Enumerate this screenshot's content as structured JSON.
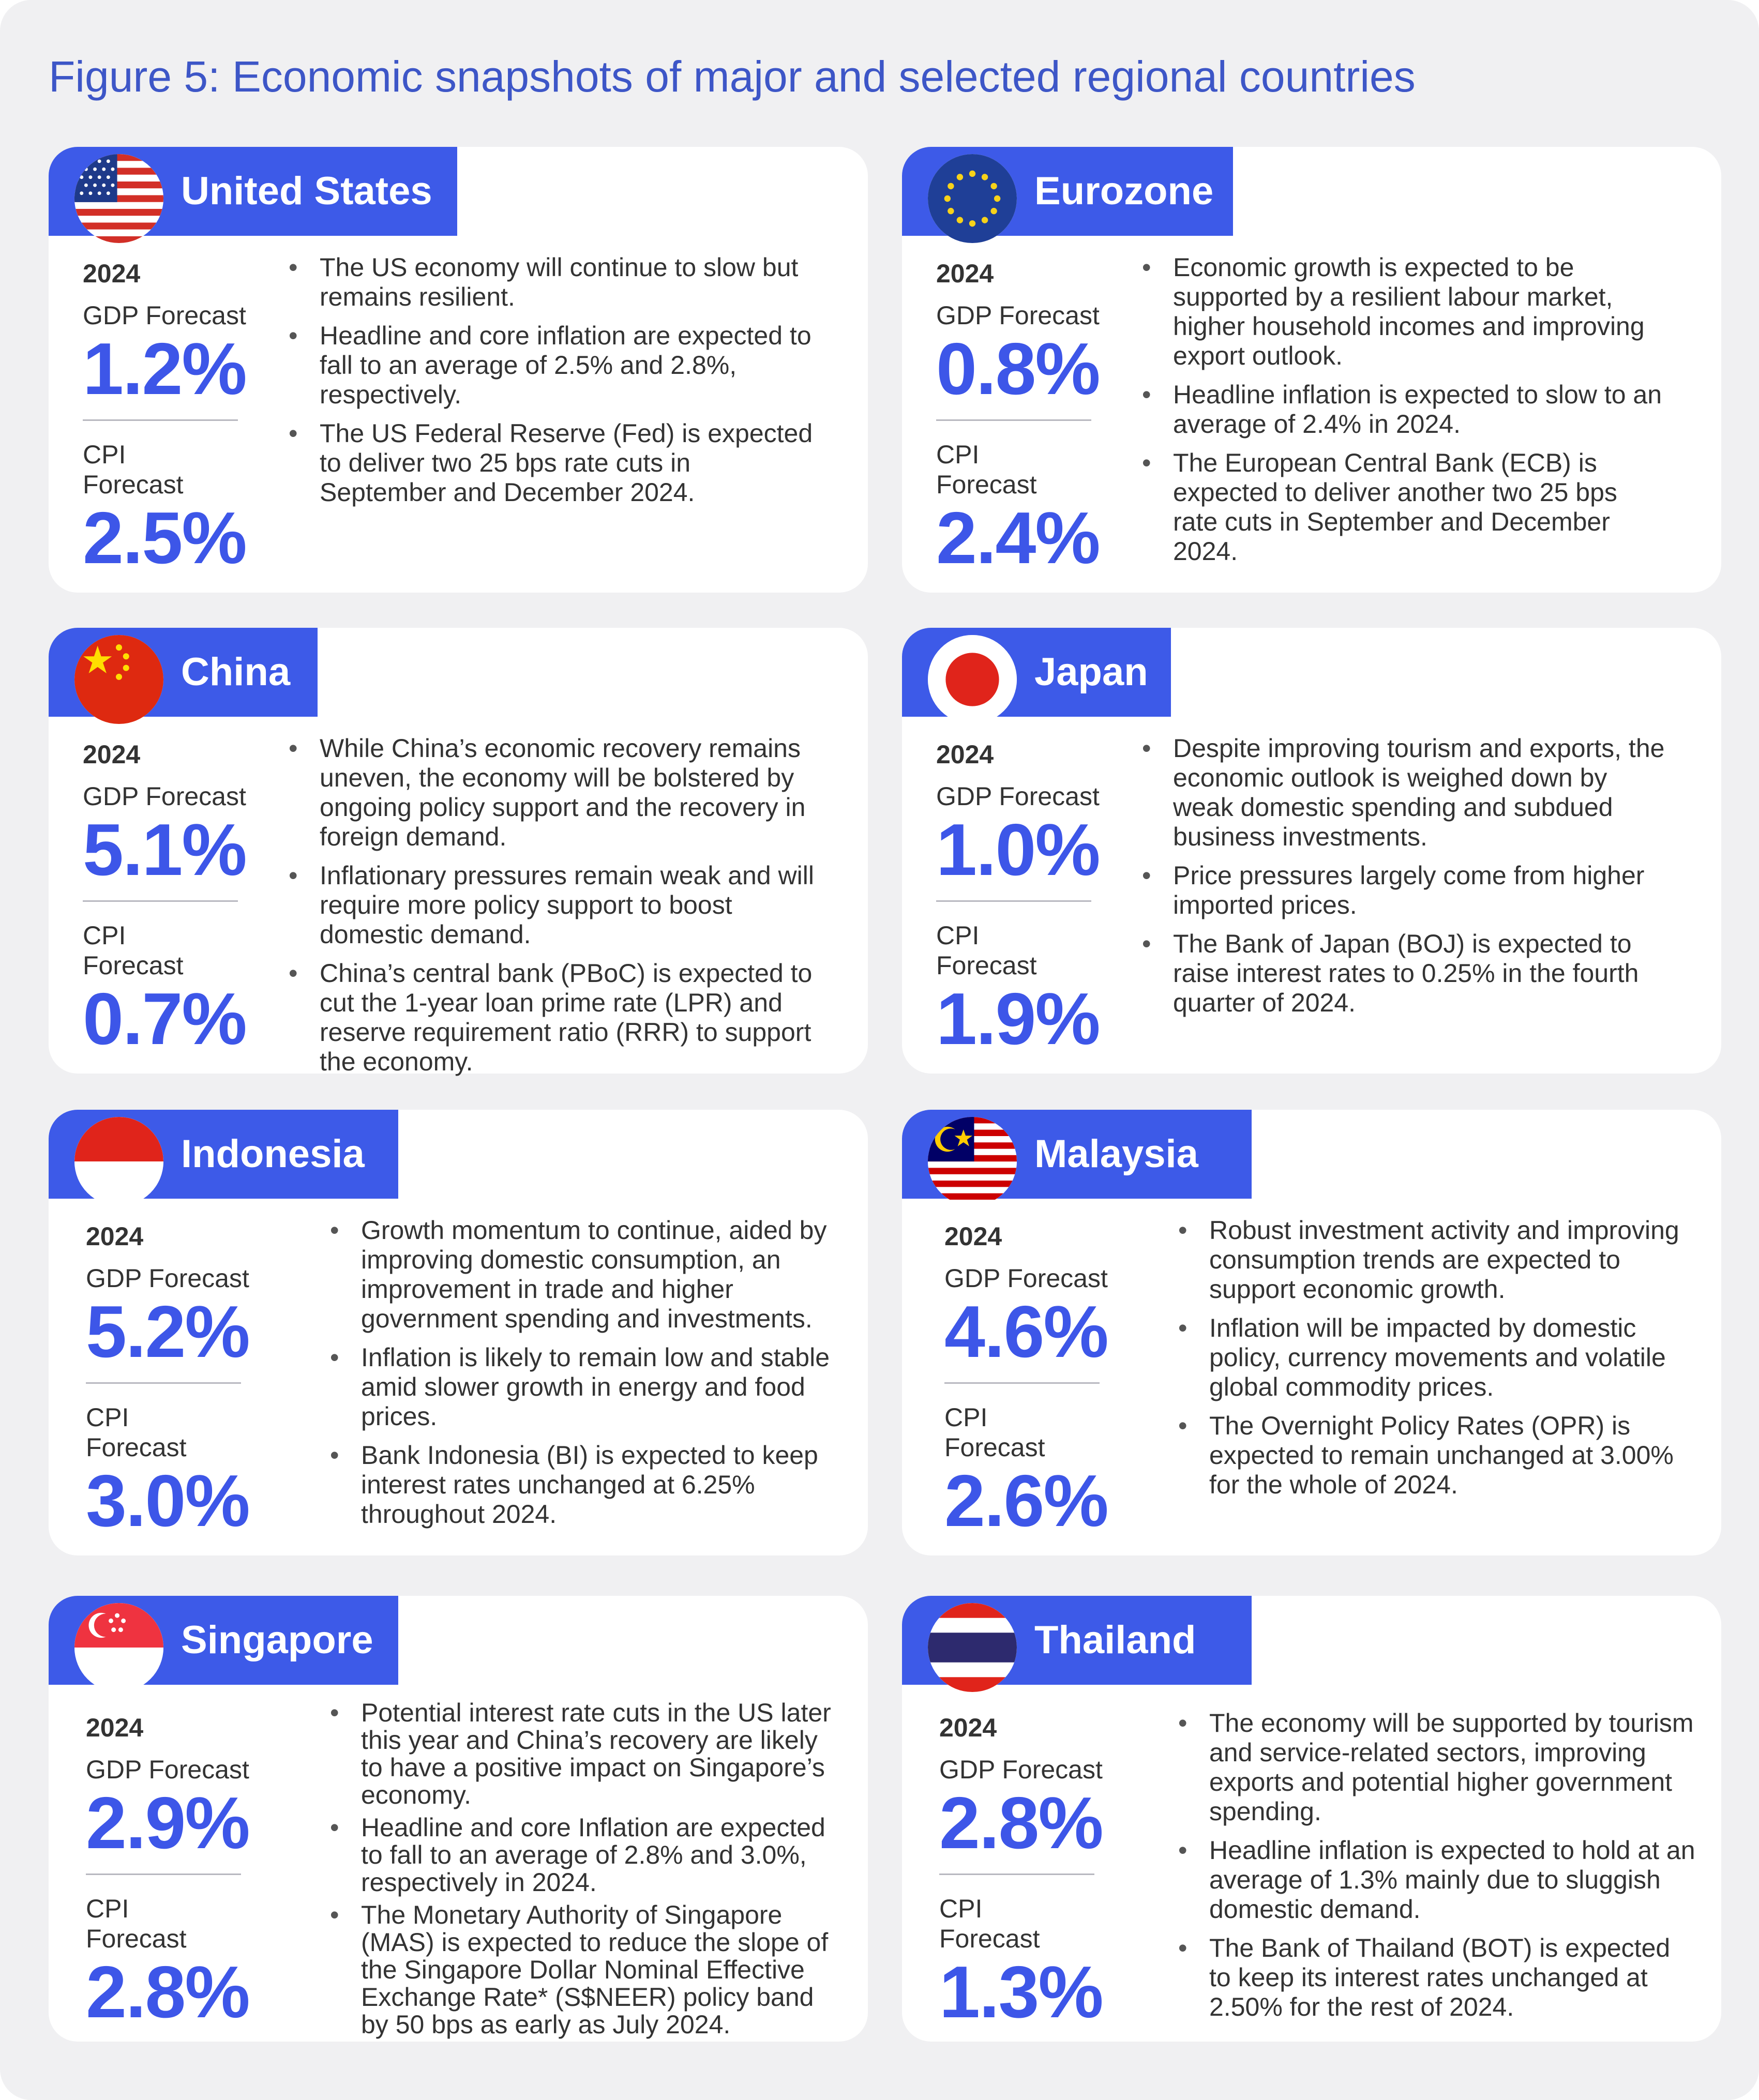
{
  "title": "Figure 5: Economic snapshots of major and selected regional countries",
  "year_label": "2024",
  "gdp_label": "GDP Forecast",
  "cpi_label_line1": "CPI",
  "cpi_label_line2": "Forecast",
  "countries": [
    {
      "name": "United States",
      "flag": "us-flag-icon",
      "gdp": "1.2%",
      "cpi": "2.5%",
      "bullets": [
        "The US economy will continue to slow but remains resilient.",
        "Headline and core inflation are expected to fall to an average of 2.5% and 2.8%, respectively.",
        "The US Federal Reserve (Fed) is expected to deliver two 25 bps rate cuts in September and December 2024."
      ]
    },
    {
      "name": "Eurozone",
      "flag": "eu-flag-icon",
      "gdp": "0.8%",
      "cpi": "2.4%",
      "bullets": [
        "Economic growth is expected to be supported by a resilient labour market, higher household incomes and improving export outlook.",
        "Headline inflation is expected to slow to an average of 2.4% in 2024.",
        "The European Central Bank (ECB) is expected to deliver another two 25 bps rate cuts in September and December 2024."
      ]
    },
    {
      "name": "China",
      "flag": "china-flag-icon",
      "gdp": "5.1%",
      "cpi": "0.7%",
      "bullets": [
        "While China’s economic recovery remains uneven, the economy will be bolstered by ongoing policy support and the recovery in foreign demand.",
        "Inflationary pressures remain weak and will require more policy support to boost domestic demand.",
        "China’s central bank (PBoC) is expected to cut the 1-year loan prime rate (LPR) and reserve requirement ratio (RRR) to support the economy."
      ]
    },
    {
      "name": "Japan",
      "flag": "japan-flag-icon",
      "gdp": "1.0%",
      "cpi": "1.9%",
      "bullets": [
        "Despite improving tourism and exports, the economic outlook is weighed down by weak domestic spending and subdued business investments.",
        "Price pressures largely come from higher imported prices.",
        "The Bank of Japan (BOJ) is expected to raise interest rates to 0.25% in the fourth quarter of 2024."
      ]
    },
    {
      "name": "Indonesia",
      "flag": "indonesia-flag-icon",
      "gdp": "5.2%",
      "cpi": "3.0%",
      "bullets": [
        "Growth momentum to continue, aided by improving domestic consumption, an improvement in trade and higher government spending and investments.",
        "Inflation is likely to remain low and stable amid slower growth in energy and food prices.",
        "Bank Indonesia (BI) is expected to keep interest rates unchanged at 6.25% throughout 2024."
      ]
    },
    {
      "name": "Malaysia",
      "flag": "malaysia-flag-icon",
      "gdp": "4.6%",
      "cpi": "2.6%",
      "bullets": [
        "Robust investment activity and improving consumption trends are expected to support economic growth.",
        "Inflation will be impacted by domestic policy, currency movements and volatile global commodity prices.",
        "The Overnight Policy Rates (OPR) is expected to remain unchanged at 3.00% for the whole of 2024."
      ]
    },
    {
      "name": "Singapore",
      "flag": "singapore-flag-icon",
      "gdp": "2.9%",
      "cpi": "2.8%",
      "bullets": [
        "Potential interest rate cuts in the US later this year and China’s recovery are likely to have a positive impact on Singapore’s economy.",
        "Headline and core Inflation are expected to fall to an average of 2.8% and 3.0%, respectively in 2024.",
        "The Monetary Authority of Singapore (MAS) is expected to reduce the slope of the Singapore Dollar Nominal Effective Exchange Rate* (S$NEER) policy band by 50 bps as early as July 2024."
      ]
    },
    {
      "name": "Thailand",
      "flag": "thailand-flag-icon",
      "gdp": "2.8%",
      "cpi": "1.3%",
      "bullets": [
        "The economy will be supported by tourism and service-related sectors, improving exports and potential higher government spending.",
        "Headline inflation is expected to hold at an average of 1.3% mainly due to sluggish domestic demand.",
        "The Bank of Thailand (BOT) is expected to keep its interest rates unchanged at 2.50% for the rest of 2024."
      ]
    }
  ]
}
